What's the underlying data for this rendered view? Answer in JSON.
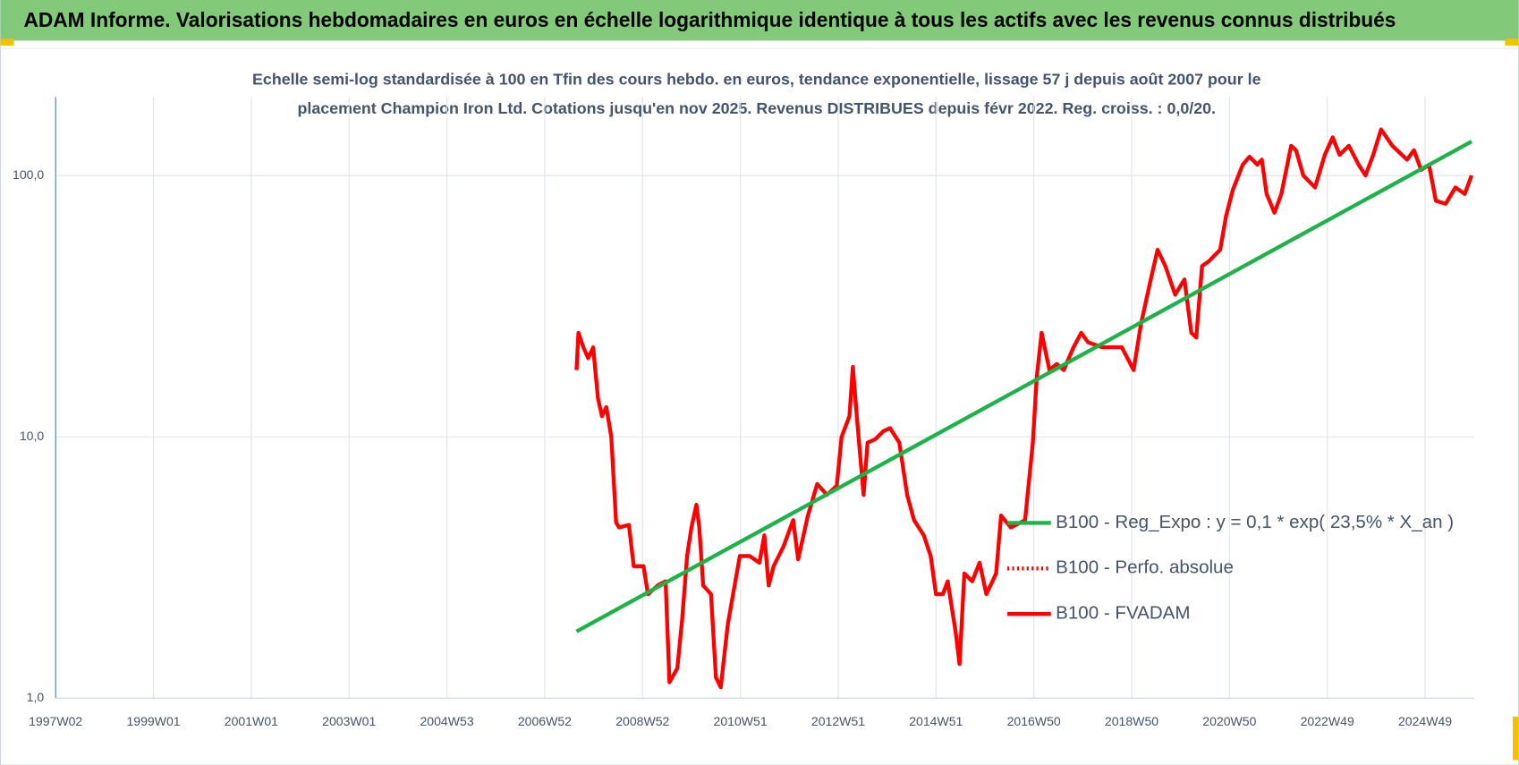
{
  "chart_data": {
    "type": "line",
    "title": "ADAM Informe. Valorisations hebdomadaires en euros en échelle logarithmique identique à tous les actifs avec les revenus connus distribués",
    "subtitle": [
      "Echelle semi-log standardisée à 100 en Tfin des cours hebdo. en euros, tendance exponentielle, lissage 57 j depuis août 2007 pour le",
      "placement Champion Iron Ltd. Cotations jusqu'en nov 2025. Revenus DISTRIBUES depuis févr 2022. Reg. croiss. : 0,0/20."
    ],
    "xlim": [
      1997,
      2026
    ],
    "xticks": [
      {
        "value": 1997,
        "label": "1997W02"
      },
      {
        "value": 1999,
        "label": "1999W01"
      },
      {
        "value": 2001,
        "label": "2001W01"
      },
      {
        "value": 2003,
        "label": "2003W01"
      },
      {
        "value": 2005,
        "label": "2004W53"
      },
      {
        "value": 2007,
        "label": "2006W52"
      },
      {
        "value": 2009,
        "label": "2008W52"
      },
      {
        "value": 2011,
        "label": "2010W51"
      },
      {
        "value": 2013,
        "label": "2012W51"
      },
      {
        "value": 2015,
        "label": "2014W51"
      },
      {
        "value": 2017,
        "label": "2016W50"
      },
      {
        "value": 2019,
        "label": "2018W50"
      },
      {
        "value": 2021,
        "label": "2020W50"
      },
      {
        "value": 2023,
        "label": "2022W49"
      },
      {
        "value": 2025,
        "label": "2024W49"
      }
    ],
    "ylim": [
      1,
      200
    ],
    "yticks": [
      {
        "value": 1,
        "label": "1,0"
      },
      {
        "value": 10,
        "label": "10,0"
      },
      {
        "value": 100,
        "label": "100,0"
      }
    ],
    "log_y": true,
    "grid": true,
    "legend": "right",
    "series": [
      {
        "name": "B100 - Reg_Expo : y = 0,1 * exp( 23,5% *  X_an )",
        "color": "#1db34a",
        "dash": "solid",
        "x": [
          2007.65,
          2025.95
        ],
        "values": [
          1.8,
          135
        ]
      },
      {
        "name": "B100 - Perfo. absolue",
        "color": "#ff0000",
        "dash": "dotted",
        "x": [],
        "values": []
      },
      {
        "name": "B100 - FVADAM",
        "color": "#ff0000",
        "dash": "solid",
        "x": [
          2007.65,
          2007.69,
          2007.79,
          2007.89,
          2007.99,
          2008.09,
          2008.17,
          2008.26,
          2008.36,
          2008.46,
          2008.52,
          2008.72,
          2008.82,
          2009.02,
          2009.11,
          2009.31,
          2009.47,
          2009.55,
          2009.71,
          2009.81,
          2009.91,
          2010.0,
          2010.1,
          2010.16,
          2010.24,
          2010.4,
          2010.5,
          2010.6,
          2010.74,
          2010.85,
          2010.99,
          2011.19,
          2011.39,
          2011.49,
          2011.58,
          2011.68,
          2011.88,
          2012.08,
          2012.18,
          2012.38,
          2012.57,
          2012.77,
          2012.97,
          2013.07,
          2013.23,
          2013.3,
          2013.38,
          2013.52,
          2013.6,
          2013.76,
          2013.92,
          2014.06,
          2014.25,
          2014.41,
          2014.55,
          2014.75,
          2014.89,
          2015.0,
          2015.14,
          2015.24,
          2015.4,
          2015.48,
          2015.58,
          2015.74,
          2015.89,
          2016.03,
          2016.23,
          2016.33,
          2016.53,
          2016.82,
          2016.98,
          2017.06,
          2017.16,
          2017.32,
          2017.47,
          2017.61,
          2017.81,
          2017.97,
          2018.11,
          2018.4,
          2018.8,
          2019.04,
          2019.19,
          2019.39,
          2019.53,
          2019.69,
          2019.89,
          2020.08,
          2020.22,
          2020.32,
          2020.44,
          2020.58,
          2020.81,
          2020.93,
          2021.07,
          2021.27,
          2021.41,
          2021.57,
          2021.66,
          2021.76,
          2021.92,
          2022.06,
          2022.26,
          2022.36,
          2022.51,
          2022.75,
          2022.95,
          2023.11,
          2023.25,
          2023.44,
          2023.64,
          2023.78,
          2023.94,
          2024.1,
          2024.33,
          2024.63,
          2024.77,
          2024.92,
          2025.08,
          2025.22,
          2025.42,
          2025.62,
          2025.81,
          2025.95
        ],
        "values": [
          18,
          25,
          22,
          20,
          22,
          14,
          12,
          13,
          10,
          4.7,
          4.5,
          4.6,
          3.2,
          3.2,
          2.5,
          2.7,
          2.8,
          1.15,
          1.3,
          2.0,
          3.5,
          4.5,
          5.5,
          4.5,
          2.7,
          2.5,
          1.2,
          1.1,
          1.9,
          2.5,
          3.5,
          3.5,
          3.3,
          4.2,
          2.7,
          3.2,
          3.8,
          4.8,
          3.4,
          5.0,
          6.6,
          6.0,
          6.5,
          10,
          12,
          18.5,
          12,
          6.0,
          9.5,
          9.8,
          10.5,
          10.8,
          9.5,
          6.0,
          4.8,
          4.2,
          3.5,
          2.5,
          2.5,
          2.8,
          1.8,
          1.35,
          3.0,
          2.8,
          3.3,
          2.5,
          3.0,
          5.0,
          4.5,
          4.8,
          9.5,
          17,
          25,
          18,
          19,
          18,
          22,
          25,
          23,
          22,
          22,
          18,
          27,
          40,
          52,
          45,
          35,
          40,
          25,
          24,
          45,
          47,
          52,
          70,
          88,
          110,
          118,
          110,
          115,
          85,
          72,
          85,
          130,
          125,
          100,
          90,
          120,
          140,
          120,
          130,
          110,
          100,
          120,
          150,
          130,
          115,
          125,
          105,
          110,
          80,
          78,
          90,
          85,
          100
        ]
      }
    ]
  }
}
